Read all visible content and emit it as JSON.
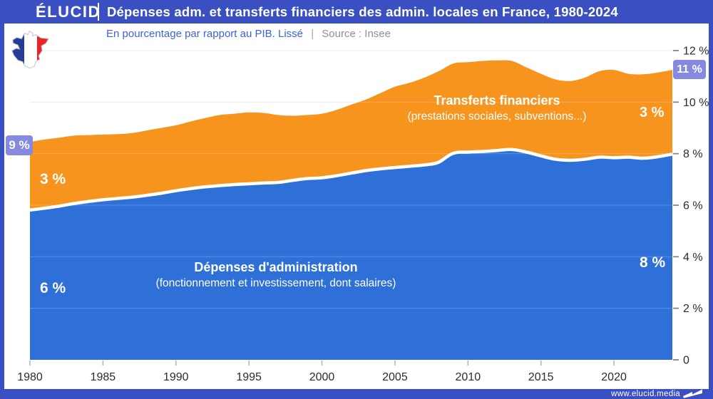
{
  "header": {
    "logo": "ÉLUCID",
    "title": "Dépenses adm. et transferts financiers des admin. locales en France, 1980-2024"
  },
  "subtitle": {
    "main": "En pourcentage par rapport au PIB. Lissé",
    "separator": "|",
    "source": "Source : Insee"
  },
  "annotations": {
    "total_1980_badge": "9 %",
    "total_2024_badge": "11 %",
    "transfers_1980": "3 %",
    "admin_1980": "6 %",
    "transfers_2024": "3 %",
    "admin_2024": "8 %"
  },
  "series_labels": {
    "transfers_title": "Transferts financiers",
    "transfers_sub": "(prestations sociales, subventions...)",
    "admin_title": "Dépenses d'administration",
    "admin_sub": "(fonctionnement et investissement, dont salaires)"
  },
  "footer": {
    "url": "www.elucid.media"
  },
  "colors": {
    "frame_blue": "#3A50C2",
    "area_blue": "#2E70D7",
    "area_orange": "#F7941E",
    "badge_lavender": "#8589E0",
    "subtitle_blue": "#3E63D7",
    "axis_text": "#2B2B30",
    "gridline": "#E7E7EC"
  },
  "chart_data": {
    "type": "area",
    "stacked": true,
    "title": "Dépenses adm. et transferts financiers des admin. locales en France, 1980-2024",
    "ylabel": "En pourcentage par rapport au PIB (lissé)",
    "source": "Insee",
    "ylim": [
      0,
      12
    ],
    "grid": true,
    "x": [
      1980,
      1981,
      1982,
      1983,
      1984,
      1985,
      1986,
      1987,
      1988,
      1989,
      1990,
      1991,
      1992,
      1993,
      1994,
      1995,
      1996,
      1997,
      1998,
      1999,
      2000,
      2001,
      2002,
      2003,
      2004,
      2005,
      2006,
      2007,
      2008,
      2009,
      2010,
      2011,
      2012,
      2013,
      2014,
      2015,
      2016,
      2017,
      2018,
      2019,
      2020,
      2021,
      2022,
      2023,
      2024
    ],
    "series": [
      {
        "name": "Dépenses d'administration (fonctionnement et investissement, dont salaires)",
        "color": "#2E70D7",
        "values": [
          5.75,
          5.82,
          5.9,
          6.0,
          6.08,
          6.15,
          6.2,
          6.25,
          6.32,
          6.4,
          6.5,
          6.58,
          6.65,
          6.7,
          6.74,
          6.77,
          6.8,
          6.82,
          6.9,
          6.97,
          7.0,
          7.08,
          7.18,
          7.28,
          7.35,
          7.4,
          7.45,
          7.5,
          7.6,
          7.95,
          8.0,
          8.02,
          8.06,
          8.1,
          8.0,
          7.85,
          7.72,
          7.68,
          7.72,
          7.8,
          7.78,
          7.8,
          7.76,
          7.82,
          7.92
        ]
      },
      {
        "name": "Transferts financiers (prestations sociales, subventions...)",
        "color": "#F7941E",
        "values": [
          2.7,
          2.73,
          2.72,
          2.7,
          2.64,
          2.59,
          2.56,
          2.55,
          2.58,
          2.6,
          2.6,
          2.67,
          2.73,
          2.8,
          2.81,
          2.83,
          2.78,
          2.68,
          2.57,
          2.53,
          2.55,
          2.62,
          2.72,
          2.82,
          3.0,
          3.2,
          3.3,
          3.45,
          3.6,
          3.55,
          3.55,
          3.58,
          3.56,
          3.5,
          3.35,
          3.25,
          3.16,
          3.14,
          3.23,
          3.4,
          3.47,
          3.3,
          3.32,
          3.33,
          3.33
        ]
      }
    ],
    "x_ticks": [
      1980,
      1985,
      1990,
      1995,
      2000,
      2005,
      2010,
      2015,
      2020
    ],
    "y_tick_values": [
      0,
      2,
      4,
      6,
      8,
      10,
      12
    ],
    "y_tick_labels": [
      "0",
      "2 %",
      "4 %",
      "6 %",
      "8 %",
      "10 %",
      "12 %"
    ],
    "legend_position": "in-area"
  }
}
